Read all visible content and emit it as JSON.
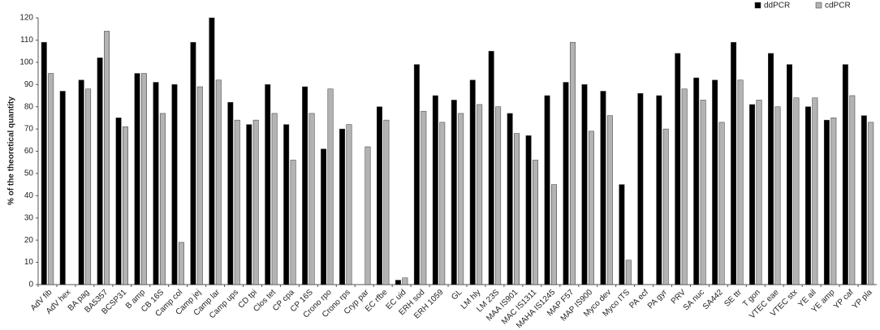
{
  "chart_data": {
    "type": "bar",
    "y_label": "% of the theoretical quantity",
    "categories": [
      "AdV fib",
      "AdV hex",
      "BA pag",
      "BA5357",
      "BCSP31",
      "B amp",
      "CB 16S",
      "Camp col",
      "Camp jej",
      "Camp lar",
      "Camp ups",
      "CD tpi",
      "Clos tet",
      "CP cpa",
      "CP 16S",
      "Crono rpo",
      "Crono rps",
      "Cryp par",
      "EC rfbe",
      "EC uid",
      "ERH sod",
      "ERH 1059",
      "GL",
      "LM hly",
      "LM 23S",
      "MAA IS901",
      "MAC IS1311",
      "MAHA IS1245",
      "MAP F57",
      "MAP IS900",
      "Myco dev",
      "Myco ITS",
      "PA ecf",
      "PA gyr",
      "PRV",
      "SA nuc",
      "SA442",
      "SE ttr",
      "T gon",
      "VTEC eae",
      "VTEC stx",
      "YE ail",
      "YE amp",
      "YP caf",
      "YP pla"
    ],
    "series": [
      {
        "name": "ddPCR",
        "color": "#000000",
        "values": [
          109,
          87,
          92,
          102,
          75,
          95,
          91,
          90,
          109,
          120,
          82,
          72,
          90,
          72,
          89,
          61,
          70,
          null,
          80,
          2,
          99,
          85,
          83,
          92,
          105,
          77,
          67,
          85,
          91,
          90,
          87,
          45,
          86,
          85,
          104,
          93,
          92,
          109,
          81,
          104,
          99,
          80,
          74,
          99,
          76
        ]
      },
      {
        "name": "cdPCR",
        "color": "#b3b3b3",
        "values": [
          95,
          null,
          88,
          114,
          71,
          95,
          77,
          19,
          89,
          92,
          74,
          74,
          77,
          56,
          77,
          88,
          72,
          62,
          74,
          3,
          78,
          73,
          77,
          81,
          80,
          68,
          56,
          45,
          109,
          69,
          76,
          11,
          null,
          70,
          88,
          83,
          73,
          92,
          83,
          80,
          84,
          84,
          75,
          85,
          73
        ]
      }
    ],
    "ylim": [
      0,
      120
    ],
    "yticks": [
      0,
      10,
      20,
      30,
      40,
      50,
      60,
      70,
      80,
      90,
      100,
      110,
      120
    ]
  }
}
